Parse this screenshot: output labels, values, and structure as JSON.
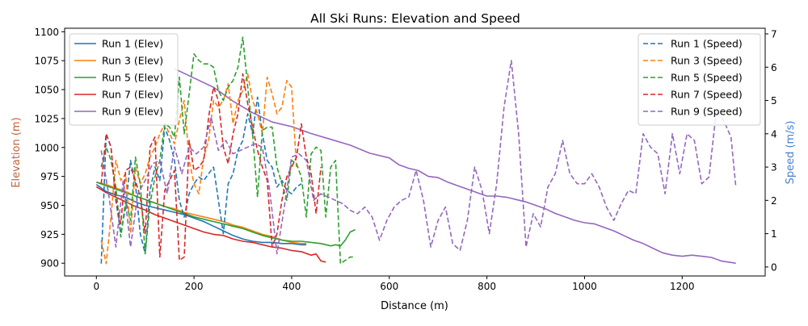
{
  "chart_data": {
    "type": "line",
    "title": "All Ski Runs: Elevation and Speed",
    "xlabel": "Distance (m)",
    "ylabel_left": "Elevation (m)",
    "ylabel_right": "Speed (m/s)",
    "ylabel_left_color": "#c0623a",
    "ylabel_right_color": "#4a7fd0",
    "xlim": [
      -65,
      1370
    ],
    "ylim_left": [
      889,
      1103
    ],
    "ylim_right": [
      -0.27,
      7.17
    ],
    "xticks": [
      0,
      200,
      400,
      600,
      800,
      1000,
      1200
    ],
    "yticks_left": [
      900,
      925,
      950,
      975,
      1000,
      1025,
      1050,
      1075,
      1100
    ],
    "yticks_right": [
      0,
      1,
      2,
      3,
      4,
      5,
      6,
      7
    ],
    "grid": false,
    "legend_left_placement": "upper-left",
    "legend_right_placement": "upper-right",
    "elevation_series": [
      {
        "name": "Run 1 (Elev)",
        "color": "#1f77b4",
        "x": [
          0,
          20,
          40,
          60,
          80,
          100,
          120,
          140,
          160,
          180,
          200,
          220,
          240,
          260,
          280,
          300,
          320,
          340,
          360,
          380,
          400,
          420,
          430
        ],
        "y": [
          968,
          962,
          959,
          957,
          953,
          950,
          948,
          946,
          944,
          942,
          939,
          936,
          932,
          928,
          924,
          921,
          919,
          918,
          918,
          917,
          917,
          916,
          916
        ]
      },
      {
        "name": "Run 3 (Elev)",
        "color": "#ff7f0e",
        "x": [
          0,
          20,
          40,
          60,
          80,
          100,
          120,
          140,
          160,
          180,
          200,
          220,
          240,
          260,
          280,
          300,
          320,
          340,
          360,
          380,
          400,
          420,
          430
        ],
        "y": [
          970,
          968,
          965,
          962,
          958,
          955,
          952,
          949,
          947,
          944,
          942,
          940,
          938,
          936,
          933,
          931,
          928,
          925,
          923,
          920,
          918,
          917,
          917
        ]
      },
      {
        "name": "Run 5 (Elev)",
        "color": "#2ca02c",
        "x": [
          0,
          20,
          40,
          60,
          80,
          100,
          120,
          140,
          160,
          180,
          200,
          220,
          240,
          260,
          280,
          300,
          320,
          340,
          360,
          380,
          400,
          420,
          440,
          460,
          480,
          490,
          500,
          510,
          520,
          530
        ],
        "y": [
          970,
          967,
          964,
          961,
          958,
          955,
          952,
          949,
          946,
          943,
          940,
          938,
          936,
          934,
          932,
          930,
          927,
          924,
          922,
          920,
          919,
          919,
          918,
          917,
          915,
          916,
          915,
          920,
          927,
          929
        ]
      },
      {
        "name": "Run 7 (Elev)",
        "color": "#d62728",
        "x": [
          0,
          20,
          40,
          60,
          80,
          100,
          120,
          140,
          160,
          180,
          200,
          220,
          240,
          260,
          280,
          300,
          320,
          340,
          360,
          380,
          400,
          420,
          440,
          450,
          460,
          470
        ],
        "y": [
          966,
          961,
          957,
          953,
          949,
          946,
          942,
          939,
          936,
          933,
          930,
          927,
          925,
          924,
          921,
          919,
          918,
          916,
          914,
          913,
          911,
          910,
          907,
          908,
          902,
          901
        ]
      },
      {
        "name": "Run 9 (Elev)",
        "color": "#9467bd",
        "x": [
          160,
          200,
          240,
          280,
          320,
          360,
          400,
          440,
          480,
          520,
          560,
          600,
          620,
          640,
          660,
          680,
          700,
          720,
          740,
          760,
          780,
          800,
          820,
          840,
          860,
          880,
          900,
          920,
          940,
          960,
          980,
          1000,
          1020,
          1040,
          1060,
          1080,
          1100,
          1120,
          1140,
          1160,
          1180,
          1200,
          1220,
          1240,
          1260,
          1280,
          1310
        ],
        "y": [
          1068,
          1060,
          1052,
          1040,
          1030,
          1022,
          1018,
          1012,
          1007,
          1002,
          995,
          991,
          985,
          982,
          980,
          975,
          974,
          970,
          967,
          964,
          961,
          958,
          958,
          957,
          955,
          953,
          950,
          947,
          943,
          940,
          937,
          935,
          934,
          931,
          928,
          924,
          920,
          917,
          913,
          909,
          907,
          906,
          907,
          906,
          905,
          902,
          900
        ]
      }
    ],
    "speed_series": [
      {
        "name": "Run 1 (Speed)",
        "color": "#1f77b4",
        "x": [
          10,
          20,
          30,
          40,
          50,
          60,
          70,
          80,
          90,
          100,
          110,
          120,
          130,
          140,
          150,
          160,
          170,
          180,
          190,
          200,
          210,
          220,
          230,
          240,
          250,
          260,
          270,
          280,
          290,
          300,
          310,
          320,
          330,
          340,
          350,
          360,
          370,
          380,
          390,
          400,
          410,
          420
        ],
        "y": [
          0.1,
          4.0,
          3.6,
          2.0,
          1.0,
          1.8,
          3.2,
          2.5,
          1.0,
          0.4,
          2.3,
          3.0,
          2.6,
          4.2,
          3.8,
          3.2,
          2.0,
          1.5,
          2.2,
          2.5,
          2.7,
          2.6,
          2.8,
          3.0,
          2.0,
          1.0,
          2.5,
          2.8,
          3.5,
          3.8,
          4.6,
          4.0,
          5.1,
          4.0,
          3.2,
          3.0,
          2.4,
          2.6,
          2.3,
          2.2,
          2.4,
          2.5
        ]
      },
      {
        "name": "Run 3 (Speed)",
        "color": "#ff7f0e",
        "x": [
          10,
          20,
          30,
          40,
          50,
          60,
          70,
          80,
          90,
          100,
          110,
          120,
          130,
          140,
          150,
          160,
          170,
          180,
          190,
          200,
          210,
          220,
          230,
          240,
          250,
          260,
          270,
          280,
          290,
          300,
          310,
          320,
          330,
          340,
          350,
          360,
          370,
          380,
          390,
          400,
          410
        ],
        "y": [
          0.8,
          0.1,
          1.5,
          3.2,
          2.6,
          2.8,
          1.0,
          3.0,
          2.5,
          2.8,
          3.3,
          3.6,
          4.0,
          4.3,
          4.0,
          3.7,
          4.4,
          5.0,
          3.2,
          2.5,
          2.2,
          3.3,
          3.8,
          5.0,
          4.8,
          5.0,
          5.5,
          4.3,
          5.0,
          5.3,
          5.8,
          5.0,
          4.6,
          4.0,
          5.7,
          5.2,
          4.6,
          4.8,
          5.6,
          5.4,
          3.0
        ]
      },
      {
        "name": "Run 5 (Speed)",
        "color": "#2ca02c",
        "x": [
          10,
          20,
          30,
          40,
          50,
          60,
          70,
          80,
          90,
          100,
          110,
          120,
          130,
          140,
          150,
          160,
          170,
          180,
          190,
          200,
          210,
          220,
          230,
          240,
          250,
          260,
          270,
          280,
          290,
          300,
          310,
          320,
          330,
          340,
          350,
          360,
          370,
          380,
          390,
          400,
          410,
          420,
          430,
          440,
          450,
          460,
          470,
          480,
          490,
          500,
          510,
          520,
          530
        ],
        "y": [
          3.0,
          3.6,
          3.2,
          2.4,
          0.9,
          2.0,
          1.4,
          3.3,
          2.5,
          0.4,
          1.9,
          2.7,
          3.2,
          4.3,
          4.2,
          3.9,
          5.7,
          4.0,
          5.2,
          6.4,
          6.2,
          6.1,
          6.1,
          6.0,
          5.3,
          5.0,
          5.4,
          5.6,
          6.0,
          6.9,
          5.4,
          4.0,
          2.1,
          4.1,
          4.2,
          4.2,
          3.0,
          2.5,
          2.0,
          3.2,
          3.1,
          2.7,
          1.5,
          3.4,
          3.6,
          3.5,
          1.5,
          3.0,
          3.2,
          0.1,
          0.2,
          0.3,
          0.3
        ]
      },
      {
        "name": "Run 7 (Speed)",
        "color": "#d62728",
        "x": [
          10,
          20,
          30,
          40,
          50,
          60,
          70,
          80,
          90,
          100,
          110,
          120,
          130,
          140,
          150,
          160,
          170,
          180,
          190,
          200,
          210,
          220,
          230,
          240,
          250,
          260,
          270,
          280,
          290,
          300,
          310,
          320,
          330,
          340,
          350,
          360,
          370,
          380,
          390,
          400,
          410,
          420,
          430,
          440,
          450,
          460
        ],
        "y": [
          2.5,
          4.0,
          3.6,
          2.0,
          1.3,
          2.9,
          3.0,
          2.6,
          2.1,
          1.0,
          3.6,
          3.9,
          0.3,
          2.3,
          2.6,
          2.9,
          0.2,
          0.3,
          3.8,
          2.9,
          3.0,
          3.2,
          4.5,
          5.4,
          5.0,
          3.6,
          3.1,
          4.0,
          4.6,
          5.8,
          4.9,
          4.2,
          3.5,
          3.0,
          2.6,
          0.6,
          1.0,
          2.0,
          2.7,
          3.0,
          3.3,
          4.3,
          3.3,
          2.8,
          1.6,
          3.0
        ]
      },
      {
        "name": "Run 9 (Speed)",
        "color": "#9467bd",
        "x": [
          10,
          25,
          40,
          55,
          70,
          85,
          100,
          115,
          130,
          145,
          160,
          175,
          190,
          205,
          220,
          235,
          250,
          265,
          280,
          295,
          310,
          325,
          340,
          355,
          370,
          385,
          400,
          415,
          430,
          445,
          460,
          475,
          490,
          505,
          520,
          535,
          550,
          565,
          580,
          595,
          610,
          625,
          640,
          655,
          670,
          685,
          700,
          715,
          730,
          745,
          760,
          775,
          790,
          805,
          820,
          835,
          850,
          865,
          880,
          895,
          910,
          925,
          940,
          955,
          970,
          985,
          1000,
          1015,
          1030,
          1045,
          1060,
          1075,
          1090,
          1105,
          1120,
          1135,
          1150,
          1165,
          1180,
          1195,
          1210,
          1225,
          1240,
          1255,
          1270,
          1285,
          1300,
          1310
        ],
        "y": [
          3.5,
          2.2,
          0.6,
          2.6,
          0.6,
          2.2,
          2.6,
          3.1,
          3.2,
          2.2,
          3.6,
          2.8,
          3.6,
          3.4,
          3.6,
          4.5,
          3.5,
          3.8,
          3.4,
          3.5,
          3.6,
          3.7,
          3.6,
          2.3,
          0.4,
          1.8,
          3.3,
          3.4,
          3.2,
          2.0,
          2.2,
          2.1,
          2.0,
          1.9,
          1.7,
          1.6,
          1.8,
          1.5,
          0.8,
          1.4,
          1.8,
          2.0,
          2.1,
          2.9,
          2.0,
          0.6,
          1.4,
          1.8,
          0.7,
          0.5,
          1.4,
          3.0,
          2.3,
          1.0,
          2.5,
          4.8,
          6.2,
          4.0,
          0.6,
          1.6,
          1.2,
          2.4,
          2.8,
          3.8,
          2.8,
          2.5,
          2.5,
          2.8,
          2.4,
          1.8,
          1.4,
          1.9,
          2.3,
          2.2,
          4.0,
          3.6,
          3.4,
          2.2,
          4.0,
          2.8,
          4.0,
          3.8,
          2.5,
          2.7,
          4.7,
          4.4,
          3.9,
          2.4
        ]
      }
    ]
  }
}
